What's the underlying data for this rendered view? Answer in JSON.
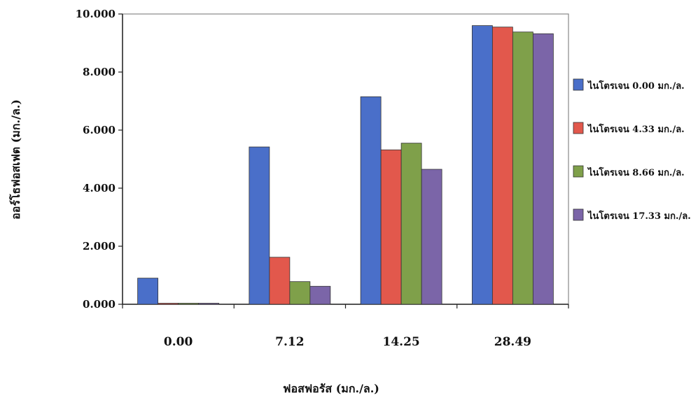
{
  "chart_data": {
    "type": "bar",
    "title": "",
    "xlabel": "ฟอสฟอรัส (มก./ล.)",
    "ylabel": "ออร์โธฟอสเฟต (มก./ล.)",
    "categories": [
      "0.00",
      "7.12",
      "14.25",
      "28.49"
    ],
    "ylim": [
      0,
      10
    ],
    "yticks": [
      0,
      2,
      4,
      6,
      8,
      10
    ],
    "ytick_labels": [
      "0.000",
      "2.000",
      "4.000",
      "6.000",
      "8.000",
      "10.000"
    ],
    "grid": false,
    "legend_position": "right",
    "series": [
      {
        "name": "ไนโตรเจน 0.00 มก./ล.",
        "color": "#4a6fc9",
        "values": [
          0.9,
          5.42,
          7.15,
          9.6
        ]
      },
      {
        "name": "ไนโตรเจน 4.33 มก./ล.",
        "color": "#e2584c",
        "values": [
          0.0,
          1.62,
          5.32,
          9.55
        ]
      },
      {
        "name": "ไนโตรเจน 8.66 มก./ล.",
        "color": "#7fa04a",
        "values": [
          0.0,
          0.78,
          5.55,
          9.38
        ]
      },
      {
        "name": "ไนโตรเจน 17.33 มก./ล.",
        "color": "#7b65a8",
        "values": [
          0.0,
          0.62,
          4.65,
          9.32
        ]
      }
    ]
  }
}
